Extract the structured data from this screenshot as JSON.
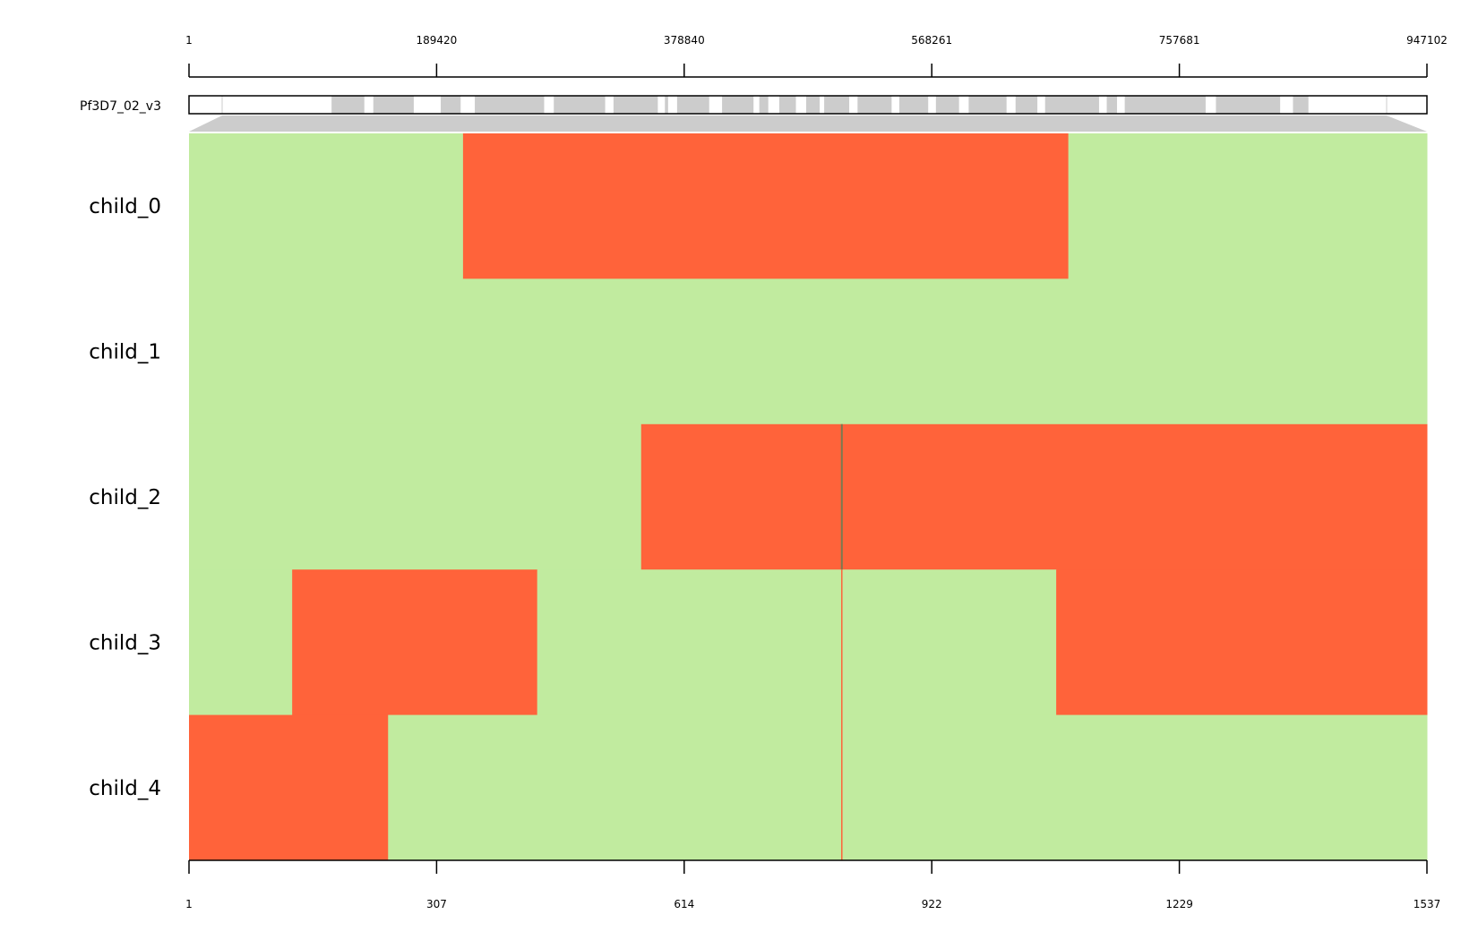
{
  "chart_data": {
    "type": "heatmap",
    "chromosome": "Pf3D7_02_v3",
    "genome_axis": {
      "ticks": [
        "1",
        "189420",
        "378840",
        "568261",
        "757681",
        "947102"
      ],
      "range": [
        1,
        947102
      ]
    },
    "marker_axis": {
      "ticks": [
        "1",
        "307",
        "614",
        "922",
        "1229",
        "1537"
      ],
      "range": [
        1,
        1537
      ]
    },
    "marker_density_spans": [
      [
        3,
        54
      ],
      [
        68,
        131
      ],
      [
        173,
        204
      ],
      [
        226,
        334
      ],
      [
        349,
        429
      ],
      [
        442,
        511
      ],
      [
        522,
        527
      ],
      [
        541,
        591
      ],
      [
        611,
        660
      ],
      [
        669,
        683
      ],
      [
        700,
        726
      ],
      [
        742,
        763
      ],
      [
        770,
        809
      ],
      [
        822,
        875
      ],
      [
        887,
        932
      ],
      [
        944,
        980
      ],
      [
        995,
        1054
      ],
      [
        1068,
        1102
      ],
      [
        1114,
        1198
      ],
      [
        1210,
        1226
      ],
      [
        1238,
        1364
      ],
      [
        1380,
        1480
      ],
      [
        1500,
        1524
      ]
    ],
    "colors": {
      "a": "#c1eb9f",
      "b": "#ff633a",
      "track": "#cccccc"
    },
    "rows": [
      {
        "name": "child_0",
        "segments": [
          {
            "start": 1,
            "end": 341,
            "state": "a"
          },
          {
            "start": 341,
            "end": 1092,
            "state": "b"
          },
          {
            "start": 1092,
            "end": 1537,
            "state": "a"
          }
        ]
      },
      {
        "name": "child_1",
        "segments": [
          {
            "start": 1,
            "end": 1537,
            "state": "a"
          }
        ]
      },
      {
        "name": "child_2",
        "segments": [
          {
            "start": 1,
            "end": 562,
            "state": "a"
          },
          {
            "start": 562,
            "end": 1537,
            "state": "b"
          }
        ]
      },
      {
        "name": "child_3",
        "segments": [
          {
            "start": 1,
            "end": 129,
            "state": "a"
          },
          {
            "start": 129,
            "end": 433,
            "state": "b"
          },
          {
            "start": 433,
            "end": 1077,
            "state": "a"
          },
          {
            "start": 1077,
            "end": 1537,
            "state": "b"
          }
        ]
      },
      {
        "name": "child_4",
        "segments": [
          {
            "start": 1,
            "end": 248,
            "state": "b"
          },
          {
            "start": 248,
            "end": 1537,
            "state": "a"
          }
        ]
      }
    ],
    "marker_line": {
      "position": 811,
      "color": "#7a7a50"
    }
  }
}
